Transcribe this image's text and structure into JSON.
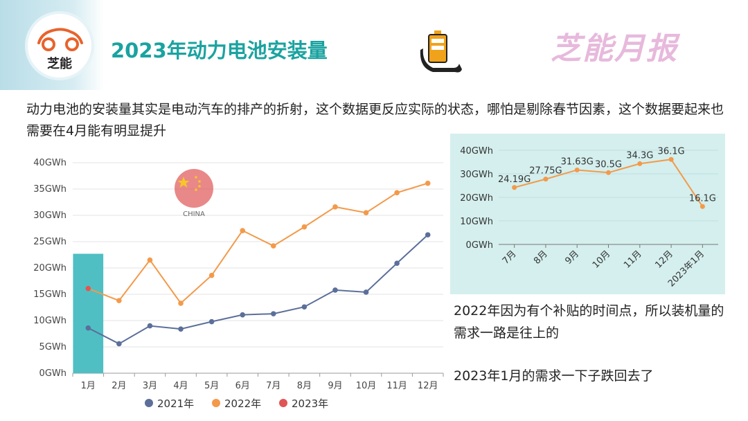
{
  "header": {
    "logo_text": "芝能",
    "title": "2023年动力电池安装量",
    "brand": "芝能月报"
  },
  "description": "动力电池的安装量其实是电动汽车的排产的折射，这个数据更反应实际的状态，哪怕是剔除春节因素，这个数据要起来也需要在4月能有明显提升",
  "notes": {
    "line1": "2022年因为有个补贴的时间点，所以装机量的需求一路是往上的",
    "line2": "2023年1月的需求一下子跌回去了"
  },
  "badge": {
    "label": "CHINA"
  },
  "colors": {
    "teal": "#1aa3a0",
    "s2021": "#5b6f9a",
    "s2022": "#f39a4a",
    "s2023": "#e05555",
    "bar2023": "#4fbfc3",
    "panel_bg": "#d4efee"
  },
  "chart_data": [
    {
      "type": "line",
      "title": "",
      "xlabel": "",
      "ylabel": "",
      "categories": [
        "1月",
        "2月",
        "3月",
        "4月",
        "5月",
        "6月",
        "7月",
        "8月",
        "9月",
        "10月",
        "11月",
        "12月"
      ],
      "y_ticks": [
        "0GWh",
        "5GWh",
        "10GWh",
        "15GWh",
        "20GWh",
        "25GWh",
        "30GWh",
        "35GWh",
        "40GWh"
      ],
      "ylim": [
        0,
        40
      ],
      "grid": true,
      "legend_position": "bottom",
      "series": [
        {
          "name": "2021年",
          "values": [
            8.6,
            5.6,
            9.0,
            8.4,
            9.8,
            11.1,
            11.3,
            12.6,
            15.8,
            15.4,
            20.9,
            26.3
          ]
        },
        {
          "name": "2022年",
          "values": [
            16.1,
            13.8,
            21.5,
            13.3,
            18.6,
            27.1,
            24.2,
            27.8,
            31.6,
            30.5,
            34.3,
            36.1
          ]
        },
        {
          "name": "2023年",
          "values": [
            16.1,
            null,
            null,
            null,
            null,
            null,
            null,
            null,
            null,
            null,
            null,
            null
          ]
        }
      ],
      "highlight_bar": {
        "category": "1月",
        "value": 22.7
      }
    },
    {
      "type": "line",
      "title": "",
      "xlabel": "",
      "ylabel": "",
      "categories": [
        "7月",
        "8月",
        "9月",
        "10月",
        "11月",
        "12月",
        "2023年1月"
      ],
      "y_ticks": [
        "0GWh",
        "10GWh",
        "20GWh",
        "30GWh",
        "40GWh"
      ],
      "ylim": [
        0,
        40
      ],
      "grid": true,
      "series": [
        {
          "values": [
            24.19,
            27.75,
            31.63,
            30.5,
            34.3,
            36.1,
            16.1
          ],
          "labels": [
            "24.19G",
            "27.75G",
            "31.63G",
            "30.5G",
            "34.3G",
            "36.1G",
            "16.1G"
          ]
        }
      ]
    }
  ]
}
